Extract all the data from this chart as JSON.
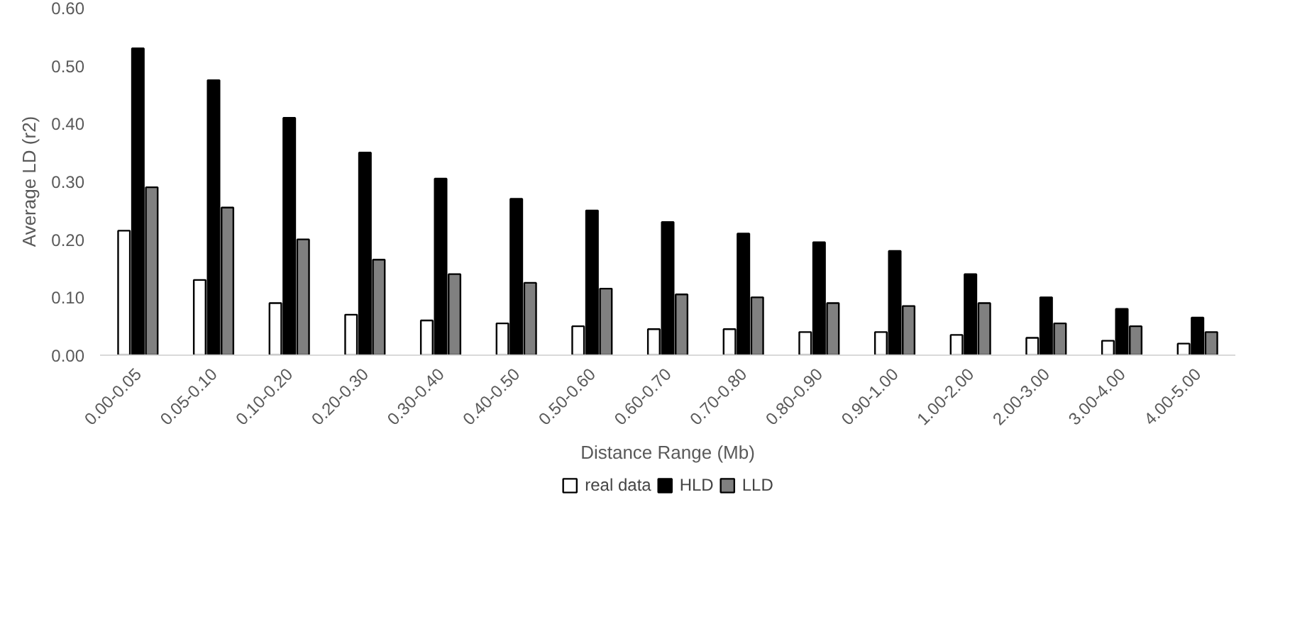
{
  "chart_data": {
    "type": "bar",
    "xlabel": "Distance Range (Mb)",
    "ylabel": "Average LD (r2)",
    "categories": [
      "0.00-0.05",
      "0.05-0.10",
      "0.10-0.20",
      "0.20-0.30",
      "0.30-0.40",
      "0.40-0.50",
      "0.50-0.60",
      "0.60-0.70",
      "0.70-0.80",
      "0.80-0.90",
      "0.90-1.00",
      "1.00-2.00",
      "2.00-3.00",
      "3.00-4.00",
      "4.00-5.00"
    ],
    "series": [
      {
        "name": "real data",
        "color": "#ffffff",
        "values": [
          0.215,
          0.13,
          0.09,
          0.07,
          0.06,
          0.055,
          0.05,
          0.045,
          0.045,
          0.04,
          0.04,
          0.035,
          0.03,
          0.025,
          0.02
        ]
      },
      {
        "name": "HLD",
        "color": "#000000",
        "values": [
          0.53,
          0.475,
          0.41,
          0.35,
          0.305,
          0.27,
          0.25,
          0.23,
          0.21,
          0.195,
          0.18,
          0.14,
          0.1,
          0.08,
          0.065
        ]
      },
      {
        "name": "LLD",
        "color": "#808080",
        "values": [
          0.29,
          0.255,
          0.2,
          0.165,
          0.14,
          0.125,
          0.115,
          0.105,
          0.1,
          0.09,
          0.085,
          0.09,
          0.055,
          0.05,
          0.04
        ]
      }
    ],
    "ylim": [
      0,
      0.6
    ],
    "yticks": [
      {
        "value": 0,
        "label": "0.00"
      },
      {
        "value": 0.1,
        "label": "0.10"
      },
      {
        "value": 0.2,
        "label": "0.20"
      },
      {
        "value": 0.3,
        "label": "0.30"
      },
      {
        "value": 0.4,
        "label": "0.40"
      },
      {
        "value": 0.5,
        "label": "0.50"
      },
      {
        "value": 0.6,
        "label": "0.60"
      }
    ],
    "grid": false,
    "legend": "bottom"
  }
}
